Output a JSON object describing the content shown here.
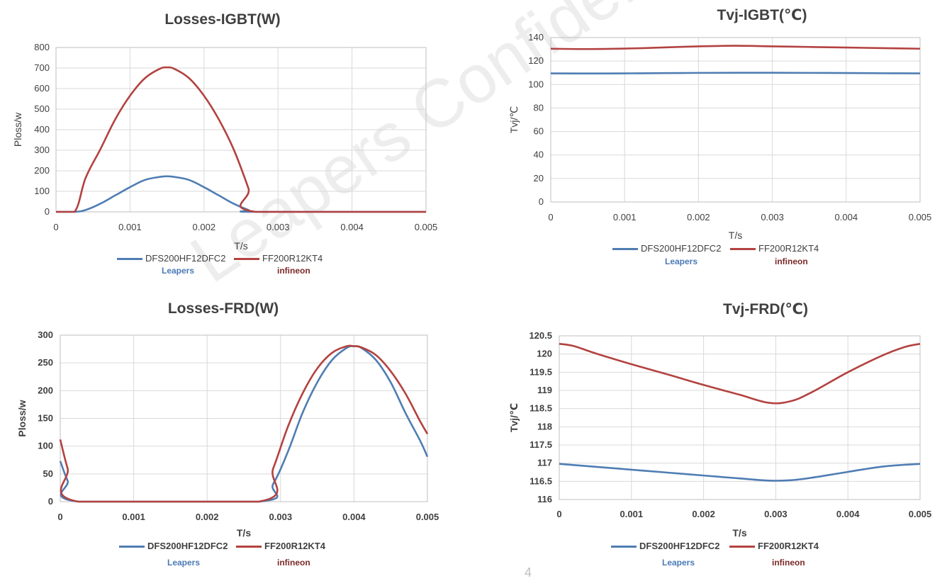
{
  "page": {
    "watermark": "Leapers Confidential",
    "page_number": "4"
  },
  "colors": {
    "leapers": "#4f7db3",
    "infineon": "#b34240",
    "leapers_text": "#4a7ab6",
    "infineon_text": "#7a2a28"
  },
  "legend": {
    "s1": "DFS200HF12DFC2",
    "s2": "FF200R12KT4",
    "s1_sub": "Leapers",
    "s2_sub": "infineon"
  },
  "chart_data": [
    {
      "id": "c1",
      "type": "line",
      "title": "Losses-IGBT(W)",
      "xlabel": "T/s",
      "ylabel": "Ploss/w",
      "xlim": [
        0,
        0.005
      ],
      "ylim": [
        0,
        800
      ],
      "xticks": [
        "0",
        "0.001",
        "0.002",
        "0.003",
        "0.004",
        "0.005"
      ],
      "yticks": [
        "0",
        "100",
        "200",
        "300",
        "400",
        "500",
        "600",
        "700",
        "800"
      ],
      "grid": true,
      "legend": "bottom",
      "series": [
        {
          "name": "DFS200HF12DFC2",
          "x": [
            0,
            0.00025,
            0.0004,
            0.0006,
            0.0008,
            0.001,
            0.0012,
            0.0014,
            0.0015,
            0.0016,
            0.0018,
            0.002,
            0.0022,
            0.0024,
            0.0026,
            0.0027,
            0.005
          ],
          "y": [
            0,
            0,
            9,
            40,
            80,
            120,
            155,
            170,
            173,
            170,
            155,
            120,
            80,
            40,
            9,
            0,
            0
          ]
        },
        {
          "name": "FF200R12KT4",
          "x": [
            0,
            0.00025,
            0.0004,
            0.0006,
            0.0008,
            0.001,
            0.0012,
            0.0014,
            0.0015,
            0.0016,
            0.0018,
            0.002,
            0.0022,
            0.0024,
            0.0026,
            0.0027,
            0.005
          ],
          "y": [
            0,
            0,
            165,
            305,
            450,
            565,
            650,
            696,
            703,
            696,
            650,
            565,
            450,
            305,
            115,
            0,
            0
          ]
        }
      ]
    },
    {
      "id": "c2",
      "type": "line",
      "title": "Tvj-IGBT(℃)",
      "xlabel": "T/s",
      "ylabel": "Tvj/℃",
      "xlim": [
        0,
        0.005
      ],
      "ylim": [
        0,
        140
      ],
      "xticks": [
        "0",
        "0.001",
        "0.002",
        "0.003",
        "0.004",
        "0.005"
      ],
      "yticks": [
        "0",
        "20",
        "40",
        "60",
        "80",
        "100",
        "120",
        "140"
      ],
      "grid": true,
      "legend": "bottom",
      "series": [
        {
          "name": "DFS200HF12DFC2",
          "x": [
            0,
            0.0005,
            0.001,
            0.0015,
            0.002,
            0.0025,
            0.003,
            0.0035,
            0.004,
            0.0045,
            0.005
          ],
          "y": [
            109.5,
            109.4,
            109.5,
            109.7,
            109.9,
            110.0,
            110.0,
            109.9,
            109.8,
            109.6,
            109.5
          ]
        },
        {
          "name": "FF200R12KT4",
          "x": [
            0,
            0.0005,
            0.001,
            0.0015,
            0.002,
            0.0025,
            0.003,
            0.0035,
            0.004,
            0.0045,
            0.005
          ],
          "y": [
            130.5,
            130.2,
            130.6,
            131.5,
            132.5,
            133.0,
            132.5,
            132.0,
            131.5,
            131.0,
            130.5
          ]
        }
      ]
    },
    {
      "id": "c3",
      "type": "line",
      "title": "Losses-FRD(W)",
      "xlabel": "T/s",
      "ylabel": "Ploss/w",
      "xlim": [
        0,
        0.005
      ],
      "ylim": [
        0,
        300
      ],
      "xticks": [
        "0",
        "0.001",
        "0.002",
        "0.003",
        "0.004",
        "0.005"
      ],
      "yticks": [
        "0",
        "50",
        "100",
        "150",
        "200",
        "250",
        "300"
      ],
      "grid": true,
      "legend": "bottom",
      "series": [
        {
          "name": "DFS200HF12DFC2",
          "x": [
            0,
            0.0001,
            0.00025,
            0.0027,
            0.0029,
            0.0031,
            0.0033,
            0.0035,
            0.0037,
            0.0039,
            0.004,
            0.0041,
            0.0043,
            0.0045,
            0.0047,
            0.0049,
            0.005
          ],
          "y": [
            73,
            38,
            0,
            0,
            32,
            90,
            160,
            215,
            255,
            277,
            280,
            277,
            255,
            215,
            160,
            110,
            81
          ]
        },
        {
          "name": "FF200R12KT4",
          "x": [
            0,
            0.0001,
            0.00025,
            0.0027,
            0.0029,
            0.0031,
            0.0033,
            0.0035,
            0.0037,
            0.0039,
            0.004,
            0.0041,
            0.0043,
            0.0045,
            0.0047,
            0.0049,
            0.005
          ],
          "y": [
            112,
            60,
            0,
            0,
            60,
            135,
            195,
            240,
            268,
            280,
            280,
            278,
            264,
            235,
            195,
            145,
            122
          ]
        }
      ]
    },
    {
      "id": "c4",
      "type": "line",
      "title": "Tvj-FRD(℃)",
      "xlabel": "T/s",
      "ylabel": "Tvj/℃",
      "xlim": [
        0,
        0.005
      ],
      "ylim": [
        116,
        120.5
      ],
      "xticks": [
        "0",
        "0.001",
        "0.002",
        "0.003",
        "0.004",
        "0.005"
      ],
      "yticks": [
        "116",
        "116.5",
        "117",
        "117.5",
        "118",
        "118.5",
        "119",
        "119.5",
        "120",
        "120.5"
      ],
      "grid": true,
      "legend": "bottom",
      "series": [
        {
          "name": "DFS200HF12DFC2",
          "x": [
            0,
            0.0005,
            0.001,
            0.0015,
            0.002,
            0.0025,
            0.0029,
            0.0032,
            0.0035,
            0.004,
            0.0045,
            0.005
          ],
          "y": [
            116.98,
            116.9,
            116.82,
            116.74,
            116.66,
            116.58,
            116.52,
            116.53,
            116.6,
            116.76,
            116.91,
            116.98
          ]
        },
        {
          "name": "FF200R12KT4",
          "x": [
            0,
            0.0002,
            0.0005,
            0.001,
            0.0015,
            0.002,
            0.0025,
            0.0029,
            0.0032,
            0.0035,
            0.004,
            0.0045,
            0.0048,
            0.005
          ],
          "y": [
            120.28,
            120.22,
            120.02,
            119.72,
            119.44,
            119.15,
            118.88,
            118.66,
            118.7,
            118.95,
            119.5,
            119.98,
            120.2,
            120.28
          ]
        }
      ]
    }
  ]
}
